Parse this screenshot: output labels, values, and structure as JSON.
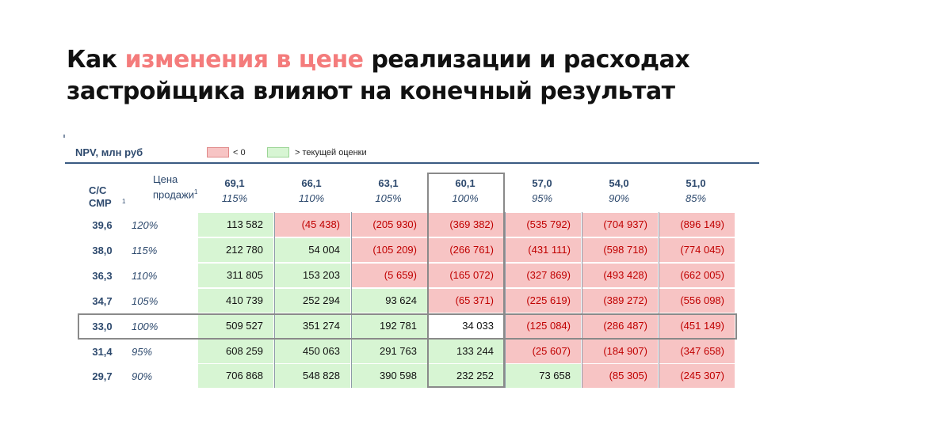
{
  "title": {
    "part1": "Как ",
    "highlight": "изменения в цене",
    "part2": " реализации и расходах застройщика влияют на конечный результат"
  },
  "table": {
    "label": "NPV, млн руб",
    "legend_negative": "< 0",
    "legend_positive": "> текущей оценки",
    "corner_cc": "С/С\nСМР",
    "corner_cc_sup": "1",
    "corner_price": "Цена\nпродажи",
    "corner_price_sup": "1",
    "columns": [
      {
        "value": "69,1",
        "pct": "115%"
      },
      {
        "value": "66,1",
        "pct": "110%"
      },
      {
        "value": "63,1",
        "pct": "105%"
      },
      {
        "value": "60,1",
        "pct": "100%"
      },
      {
        "value": "57,0",
        "pct": "95%"
      },
      {
        "value": "54,0",
        "pct": "90%"
      },
      {
        "value": "51,0",
        "pct": "85%"
      }
    ],
    "rows": [
      {
        "value": "39,6",
        "pct": "120%",
        "cells": [
          "113 582",
          "(45 438)",
          "(205 930)",
          "(369 382)",
          "(535 792)",
          "(704 937)",
          "(896 149)"
        ],
        "status": [
          "pos",
          "neg",
          "neg",
          "neg",
          "neg",
          "neg",
          "neg"
        ]
      },
      {
        "value": "38,0",
        "pct": "115%",
        "cells": [
          "212 780",
          "54 004",
          "(105 209)",
          "(266 761)",
          "(431 111)",
          "(598 718)",
          "(774 045)"
        ],
        "status": [
          "pos",
          "pos",
          "neg",
          "neg",
          "neg",
          "neg",
          "neg"
        ]
      },
      {
        "value": "36,3",
        "pct": "110%",
        "cells": [
          "311 805",
          "153 203",
          "(5 659)",
          "(165 072)",
          "(327 869)",
          "(493 428)",
          "(662 005)"
        ],
        "status": [
          "pos",
          "pos",
          "neg",
          "neg",
          "neg",
          "neg",
          "neg"
        ]
      },
      {
        "value": "34,7",
        "pct": "105%",
        "cells": [
          "410 739",
          "252 294",
          "93 624",
          "(65 371)",
          "(225 619)",
          "(389 272)",
          "(556 098)"
        ],
        "status": [
          "pos",
          "pos",
          "pos",
          "neg",
          "neg",
          "neg",
          "neg"
        ]
      },
      {
        "value": "33,0",
        "pct": "100%",
        "cells": [
          "509 527",
          "351 274",
          "192 781",
          "34 033",
          "(125 084)",
          "(286 487)",
          "(451 149)"
        ],
        "status": [
          "pos",
          "pos",
          "pos",
          "white",
          "neg",
          "neg",
          "neg"
        ]
      },
      {
        "value": "31,4",
        "pct": "95%",
        "cells": [
          "608 259",
          "450 063",
          "291 763",
          "133 244",
          "(25 607)",
          "(184 907)",
          "(347 658)"
        ],
        "status": [
          "pos",
          "pos",
          "pos",
          "pos",
          "neg",
          "neg",
          "neg"
        ]
      },
      {
        "value": "29,7",
        "pct": "90%",
        "cells": [
          "706 868",
          "548 828",
          "390 598",
          "232 252",
          "73 658",
          "(85 305)",
          "(245 307)"
        ],
        "status": [
          "pos",
          "pos",
          "pos",
          "pos",
          "pos",
          "neg",
          "neg"
        ]
      }
    ]
  },
  "colors": {
    "negative_fill": "#f7c4c4",
    "positive_fill": "#d7f5d3",
    "negative_text": "#c00000",
    "header_text": "#2e4a6e",
    "title_highlight": "#f47c7c"
  }
}
